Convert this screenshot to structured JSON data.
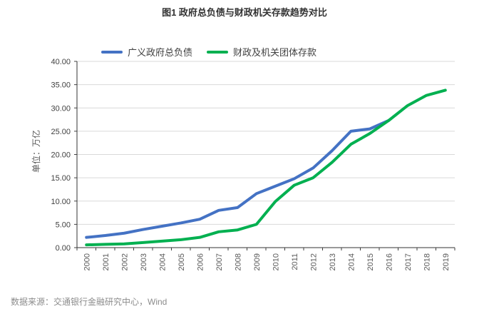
{
  "title": "图1 政府总负债与财政机关存款趋势对比",
  "y_axis_title": "单位：万亿",
  "source_note": "数据来源：交通银行金融研究中心，Wind",
  "legend": {
    "items": [
      {
        "label": "广义政府总负债",
        "color": "#4472C4"
      },
      {
        "label": "财政及机关团体存款",
        "color": "#00B050"
      }
    ]
  },
  "colors": {
    "gridline": "#d9d9d9",
    "axis": "#333333",
    "tick": "#404040",
    "x_label": "#595959",
    "y_label": "#404040"
  },
  "chart_data": {
    "type": "line",
    "title": "图1 政府总负债与财政机关存款趋势对比",
    "xlabel": "",
    "ylabel": "单位：万亿",
    "categories": [
      "2000",
      "2001",
      "2002",
      "2003",
      "2004",
      "2005",
      "2006",
      "2007",
      "2008",
      "2009",
      "2010",
      "2011",
      "2012",
      "2013",
      "2014",
      "2015",
      "2016",
      "2017",
      "2018",
      "2019"
    ],
    "series": [
      {
        "name": "广义政府总负债",
        "color": "#4472C4",
        "values": [
          2.2,
          2.6,
          3.1,
          3.9,
          4.6,
          5.3,
          6.1,
          8.0,
          8.6,
          11.6,
          13.2,
          14.8,
          17.1,
          20.8,
          25.0,
          25.5,
          27.3,
          null,
          null,
          null
        ]
      },
      {
        "name": "财政及机关团体存款",
        "color": "#00B050",
        "values": [
          0.6,
          0.7,
          0.8,
          1.1,
          1.4,
          1.7,
          2.2,
          3.4,
          3.8,
          5.0,
          9.9,
          13.4,
          15.0,
          18.3,
          22.2,
          24.5,
          27.3,
          30.5,
          32.7,
          33.8
        ]
      }
    ],
    "ylim": [
      0,
      40
    ],
    "y_tick_step": 5,
    "y_tick_labels": [
      "0.00",
      "5.00",
      "10.00",
      "15.00",
      "20.00",
      "25.00",
      "30.00",
      "35.00",
      "40.00"
    ],
    "grid": true,
    "legend_position": "top"
  }
}
